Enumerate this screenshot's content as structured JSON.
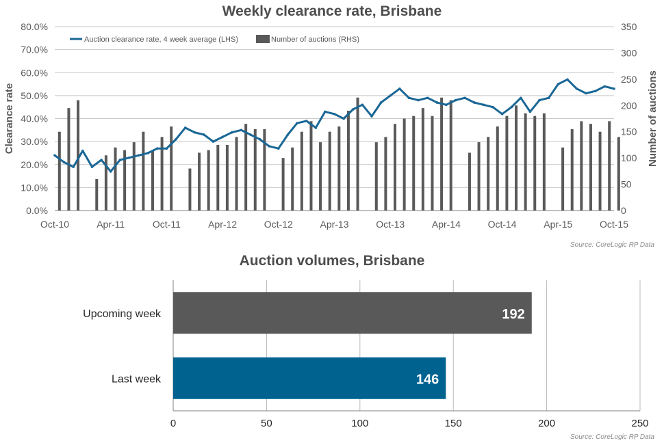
{
  "chart_data": [
    {
      "type": "line",
      "title": "Weekly clearance rate, Brisbane",
      "source": "Source: CoreLogic  RP Data",
      "ylabel_left": "Clearance rate",
      "ylabel_right": "Number of auctions",
      "ylim_left": [
        0,
        80
      ],
      "ylim_right": [
        0,
        350
      ],
      "yticks_left": [
        "0.0%",
        "10.0%",
        "20.0%",
        "30.0%",
        "40.0%",
        "50.0%",
        "60.0%",
        "70.0%",
        "80.0%"
      ],
      "yticks_right": [
        "0",
        "50",
        "100",
        "150",
        "200",
        "250",
        "300",
        "350"
      ],
      "x_ticks": [
        "Oct-10",
        "Apr-11",
        "Oct-11",
        "Apr-12",
        "Oct-12",
        "Apr-13",
        "Oct-13",
        "Apr-14",
        "Oct-14",
        "Apr-15",
        "Oct-15"
      ],
      "legend": [
        "Auction clearance rate, 4 week average (LHS)",
        "Number of auctions (RHS)"
      ],
      "legend_position": "top-left",
      "colors": {
        "line": "#1a6796",
        "bars": "#595959"
      },
      "series": [
        {
          "name": "Auction clearance rate, 4 week average (LHS)",
          "axis": "left",
          "x_month": [
            0,
            1,
            2,
            3,
            4,
            5,
            6,
            7,
            8,
            9,
            10,
            11,
            12,
            13,
            14,
            15,
            16,
            17,
            18,
            19,
            20,
            21,
            22,
            23,
            24,
            25,
            26,
            27,
            28,
            29,
            30,
            31,
            32,
            33,
            34,
            35,
            36,
            37,
            38,
            39,
            40,
            41,
            42,
            43,
            44,
            45,
            46,
            47,
            48,
            49,
            50,
            51,
            52,
            53,
            54,
            55,
            56,
            57,
            58,
            59,
            60
          ],
          "values": [
            24,
            21,
            19,
            26,
            19,
            22,
            17,
            22,
            23,
            24,
            25,
            27,
            27,
            31,
            36,
            34,
            33,
            30,
            32,
            34,
            35,
            33,
            31,
            28,
            27,
            33,
            38,
            39,
            36,
            43,
            42,
            40,
            44,
            46,
            41,
            47,
            50,
            53,
            49,
            48,
            49,
            47,
            46,
            48,
            49,
            47,
            46,
            45,
            42,
            45,
            49,
            43,
            48,
            49,
            55,
            57,
            53,
            51,
            52,
            54,
            53
          ]
        },
        {
          "name": "Number of auctions (RHS)",
          "axis": "right",
          "type": "bar",
          "x_month": [
            0,
            1,
            2,
            3,
            4,
            5,
            6,
            7,
            8,
            9,
            10,
            11,
            12,
            13,
            14,
            15,
            16,
            17,
            18,
            19,
            20,
            21,
            22,
            23,
            24,
            25,
            26,
            27,
            28,
            29,
            30,
            31,
            32,
            33,
            34,
            35,
            36,
            37,
            38,
            39,
            40,
            41,
            42,
            43,
            44,
            45,
            46,
            47,
            48,
            49,
            50,
            51,
            52,
            53,
            54,
            55,
            56,
            57,
            58,
            59,
            60
          ],
          "values": [
            150,
            195,
            210,
            0,
            60,
            105,
            120,
            115,
            130,
            150,
            115,
            140,
            160,
            0,
            80,
            110,
            115,
            125,
            125,
            140,
            165,
            155,
            155,
            0,
            100,
            120,
            150,
            170,
            130,
            150,
            160,
            190,
            215,
            0,
            130,
            140,
            165,
            175,
            180,
            195,
            180,
            215,
            210,
            0,
            110,
            130,
            140,
            160,
            180,
            200,
            185,
            180,
            185,
            0,
            120,
            155,
            170,
            165,
            150,
            170,
            140
          ]
        }
      ]
    },
    {
      "type": "bar",
      "orientation": "horizontal",
      "title": "Auction volumes, Brisbane",
      "source": "Source: CoreLogic  RP Data",
      "categories": [
        "Upcoming week",
        "Last week"
      ],
      "values": [
        192,
        146
      ],
      "value_labels": [
        "192",
        "146"
      ],
      "colors": [
        "#595959",
        "#00638f"
      ],
      "xlim": [
        0,
        250
      ],
      "xticks": [
        "0",
        "50",
        "100",
        "150",
        "200",
        "250"
      ],
      "grid": true
    }
  ]
}
